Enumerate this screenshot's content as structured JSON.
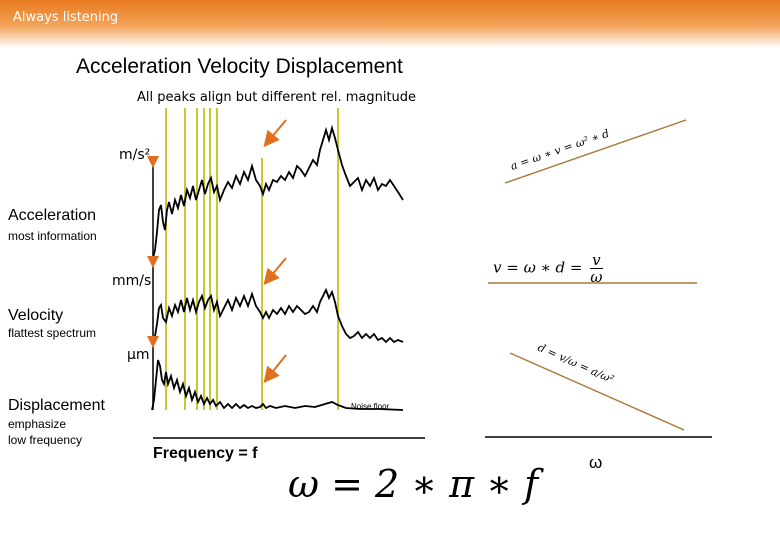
{
  "header": {
    "brand": "Always listening"
  },
  "title": "Acceleration Velocity Displacement",
  "subtitle": "All peaks align but different rel. magnitude",
  "units": {
    "acceleration": "m/s²",
    "velocity": "mm/s",
    "displacement": "μm"
  },
  "panels": {
    "acceleration": {
      "name": "Acceleration",
      "note": "most information"
    },
    "velocity": {
      "name": "Velocity",
      "note": "flattest spectrum"
    },
    "displacement": {
      "name": "Displacement",
      "note_line1": "emphasize",
      "note_line2": "low frequency"
    }
  },
  "noise_label": "Noise floor",
  "x_axis_label": "Frequency = f",
  "omega_label": "ω",
  "equations": {
    "velocity": "v = ω ∗ d = v/ω",
    "velocity_lhs": "v = ω ∗ d =",
    "velocity_num": "v",
    "velocity_den": "ω",
    "omega": "ω = 2 ∗ π ∗ f",
    "rotated_acceleration": "a = ω ∗ v = ω² ∗ d",
    "rotated_displacement": "d = v/ω = a/ω²"
  },
  "colors": {
    "header": "#e8791e",
    "peak_lines": "#c8c830",
    "arrows": "#e07020",
    "trend_lines": "#a57a3a"
  }
}
